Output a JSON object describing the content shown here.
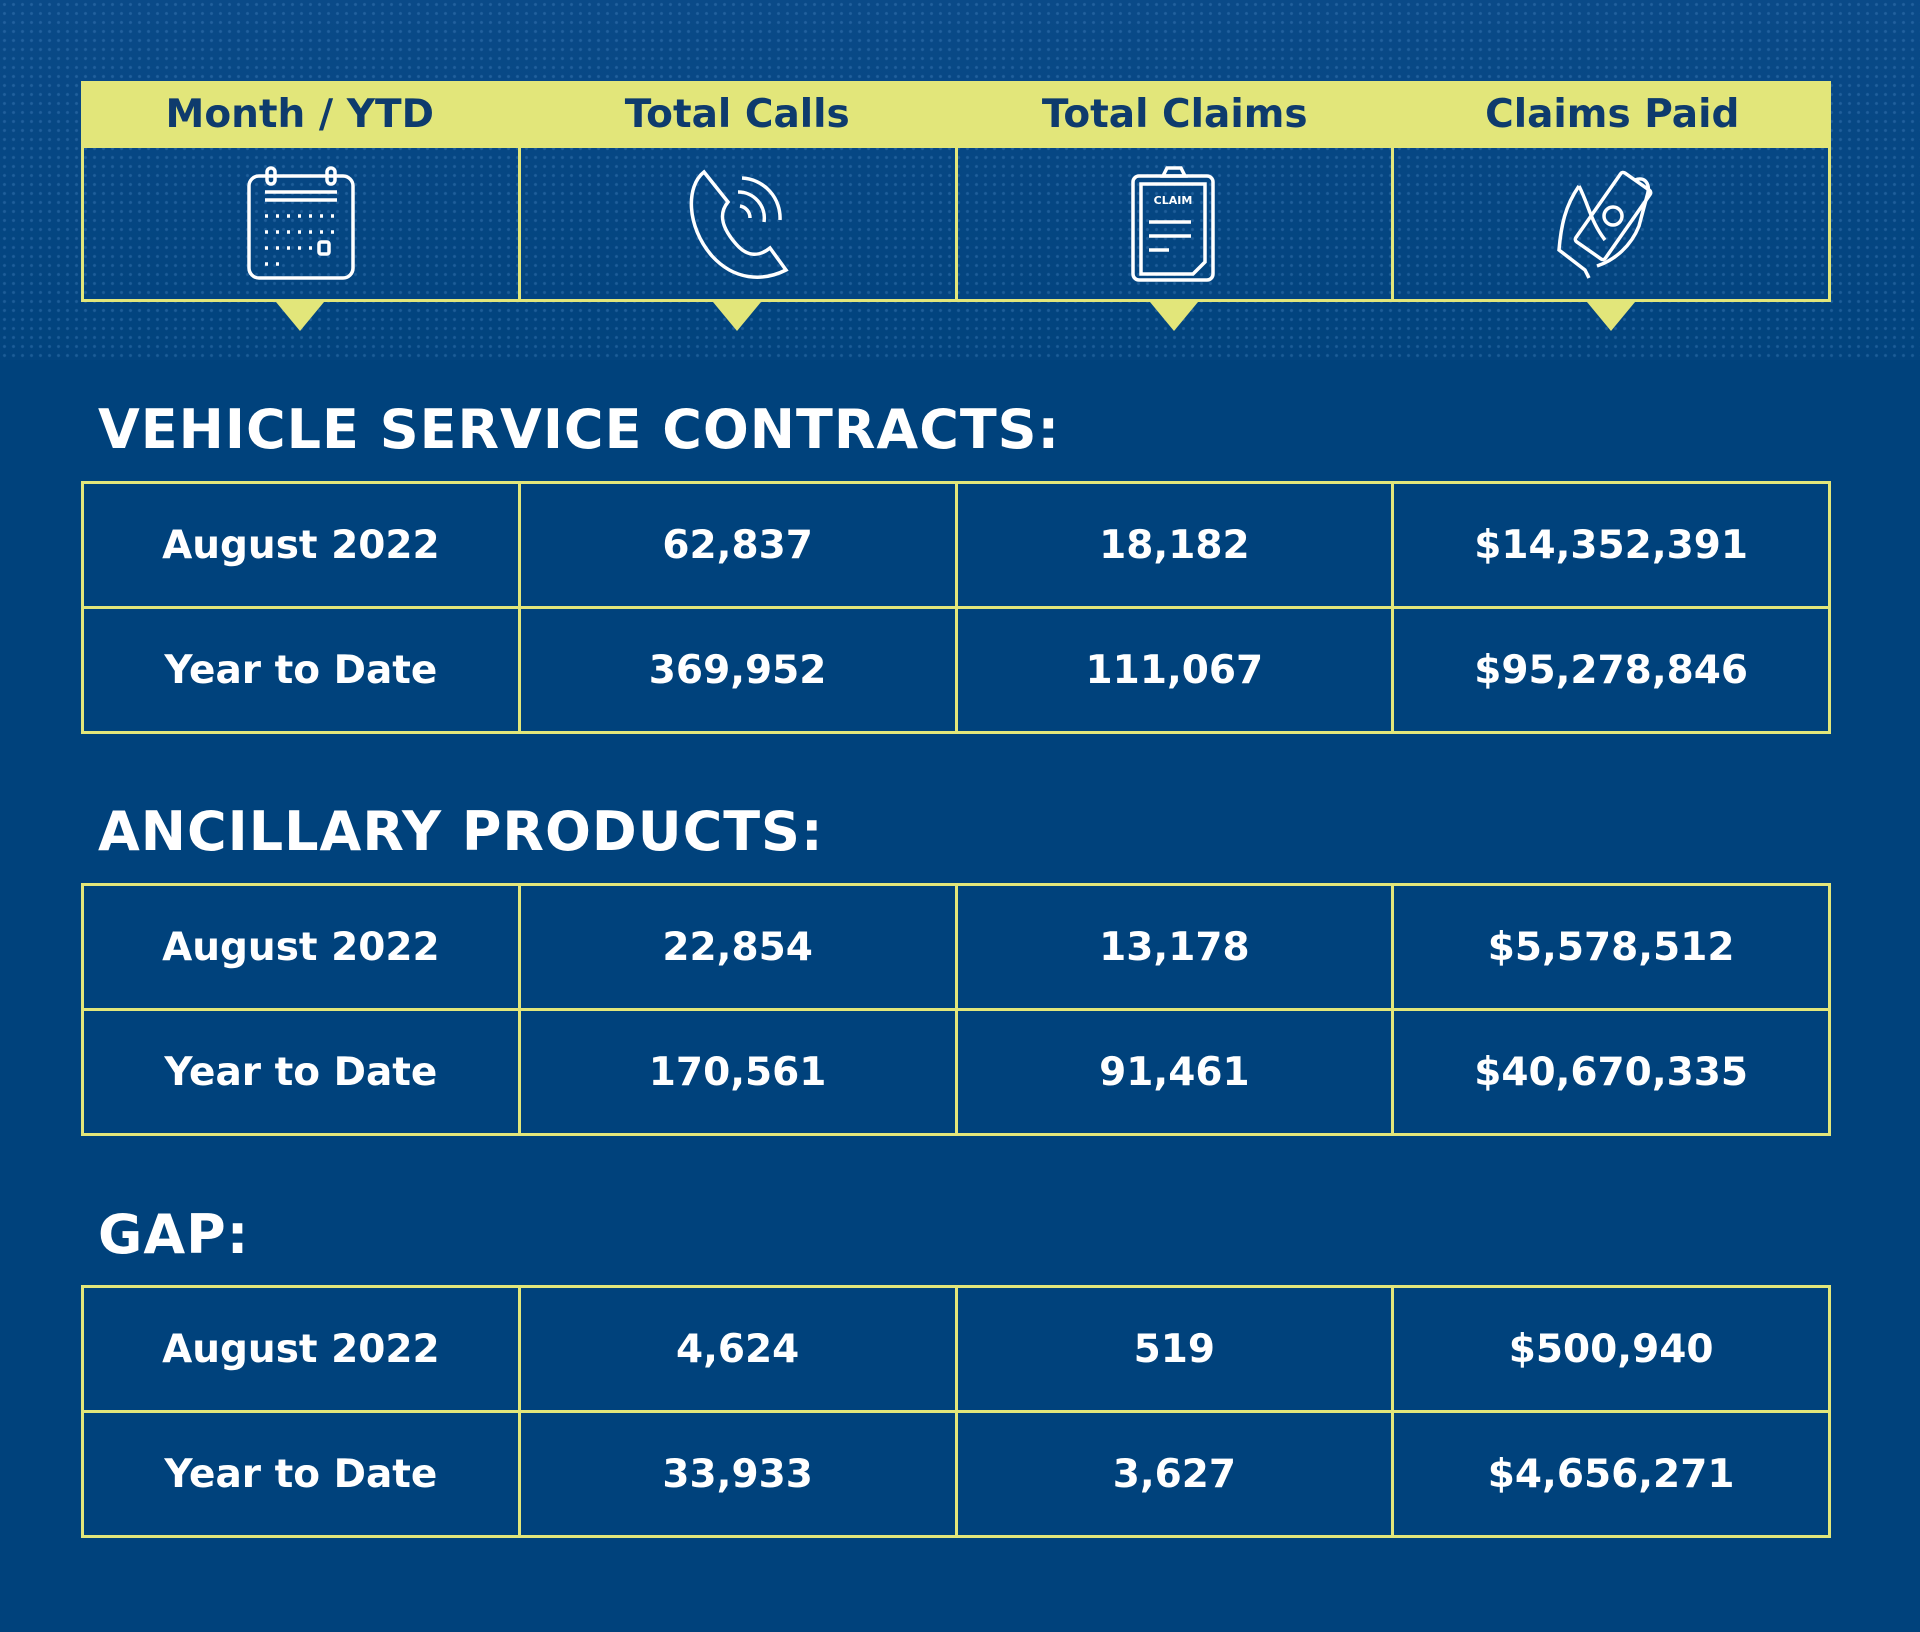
{
  "colors": {
    "background": "#00427c",
    "accent": "#e2e67a",
    "header_text": "#0e3b6d"
  },
  "header": [
    "Month / YTD",
    "Total Calls",
    "Total Claims",
    "Claims Paid"
  ],
  "icons": [
    "calendar-icon",
    "phone-icon",
    "claim-clipboard-icon",
    "hand-money-icon"
  ],
  "claim_icon_text": "CLAIM",
  "sections": [
    {
      "title": "VEHICLE SERVICE CONTRACTS:",
      "rows": [
        [
          "August 2022",
          "62,837",
          "18,182",
          "$14,352,391"
        ],
        [
          "Year to Date",
          "369,952",
          "111,067",
          "$95,278,846"
        ]
      ]
    },
    {
      "title": "ANCILLARY PRODUCTS:",
      "rows": [
        [
          "August 2022",
          "22,854",
          "13,178",
          "$5,578,512"
        ],
        [
          "Year to Date",
          "170,561",
          "91,461",
          "$40,670,335"
        ]
      ]
    },
    {
      "title": "GAP:",
      "rows": [
        [
          "August 2022",
          "4,624",
          "519",
          "$500,940"
        ],
        [
          "Year to Date",
          "33,933",
          "3,627",
          "$4,656,271"
        ]
      ]
    }
  ]
}
